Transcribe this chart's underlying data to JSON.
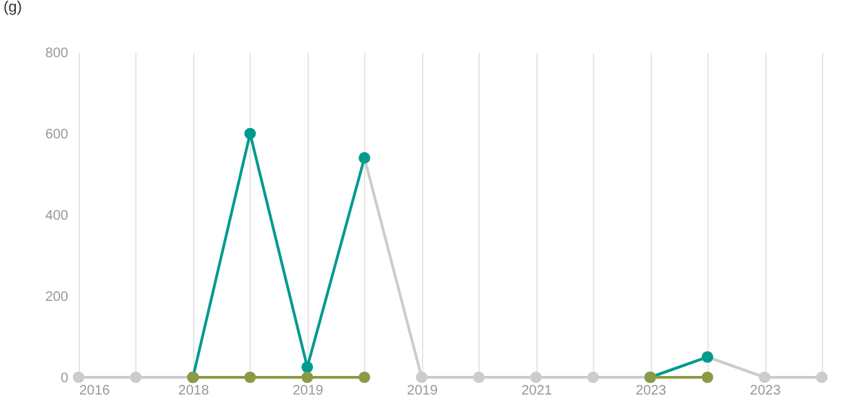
{
  "chart_data": {
    "type": "line",
    "ylabel": "(g)",
    "categories": [
      "2016",
      null,
      "2018",
      null,
      "2019",
      null,
      "2019",
      null,
      "2021",
      null,
      "2023",
      null,
      "2023",
      null
    ],
    "series": [
      {
        "color": "#cccccc",
        "values": [
          0,
          0,
          0,
          null,
          null,
          540,
          0,
          0,
          0,
          0,
          0,
          50,
          0,
          0
        ]
      },
      {
        "color": "#009a8e",
        "values": [
          null,
          null,
          0,
          600,
          25,
          540,
          null,
          null,
          null,
          null,
          0,
          50,
          null,
          null
        ]
      },
      {
        "color": "#8a9a45",
        "values": [
          null,
          null,
          0,
          0,
          0,
          0,
          null,
          null,
          null,
          null,
          0,
          0,
          null,
          null
        ]
      }
    ],
    "ylim": [
      0,
      800
    ],
    "yticks": [
      0,
      200,
      400,
      600,
      800
    ],
    "grid": "x",
    "legend": false,
    "marker": "circle",
    "line_style": "solid"
  }
}
